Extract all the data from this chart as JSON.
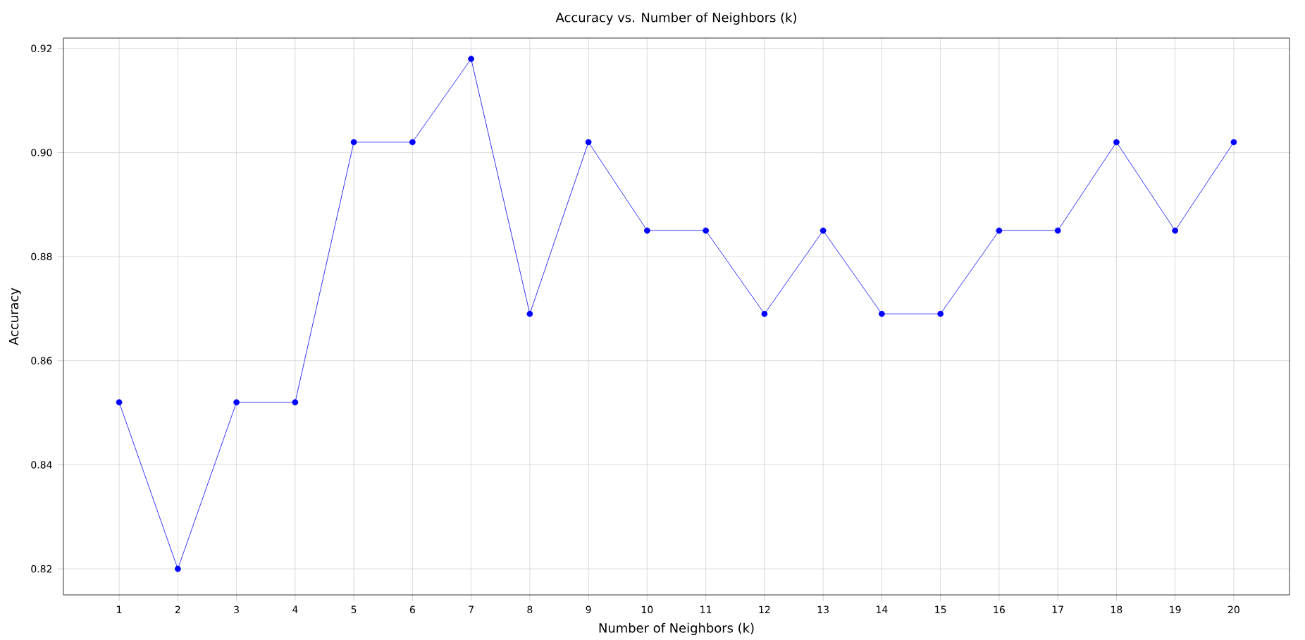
{
  "chart_data": {
    "type": "line",
    "title": "Accuracy vs. Number of Neighbors (k)",
    "xlabel": "Number of Neighbors (k)",
    "ylabel": "Accuracy",
    "x": [
      1,
      2,
      3,
      4,
      5,
      6,
      7,
      8,
      9,
      10,
      11,
      12,
      13,
      14,
      15,
      16,
      17,
      18,
      19,
      20
    ],
    "series": [
      {
        "color": "#0000ff",
        "values": [
          0.852,
          0.82,
          0.852,
          0.852,
          0.902,
          0.902,
          0.918,
          0.869,
          0.902,
          0.885,
          0.885,
          0.869,
          0.885,
          0.869,
          0.869,
          0.885,
          0.885,
          0.902,
          0.885,
          0.902
        ]
      }
    ],
    "xlim": [
      0.05,
      20.95
    ],
    "ylim": [
      0.815,
      0.922
    ],
    "xticks": [
      1,
      2,
      3,
      4,
      5,
      6,
      7,
      8,
      9,
      10,
      11,
      12,
      13,
      14,
      15,
      16,
      17,
      18,
      19,
      20
    ],
    "yticks": [
      {
        "value": 0.82,
        "label": "0.82"
      },
      {
        "value": 0.84,
        "label": "0.84"
      },
      {
        "value": 0.86,
        "label": "0.86"
      },
      {
        "value": 0.88,
        "label": "0.88"
      },
      {
        "value": 0.9,
        "label": "0.90"
      },
      {
        "value": 0.92,
        "label": "0.92"
      }
    ],
    "grid": true,
    "marker": "circle",
    "line_style": "solid"
  }
}
